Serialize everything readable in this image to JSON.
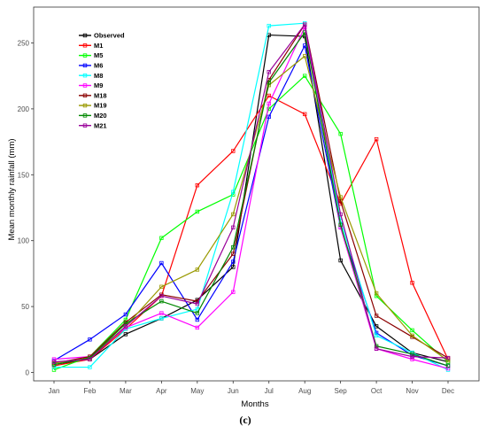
{
  "chart_data": {
    "type": "line",
    "xlabel": "Months",
    "ylabel": "Mean monthly rainfall (mm)",
    "panel_label": "(c)",
    "categories": [
      "Jan",
      "Feb",
      "Mar",
      "Apr",
      "May",
      "Jun",
      "Jul",
      "Aug",
      "Sep",
      "Oct",
      "Nov",
      "Dec"
    ],
    "ylim": [
      -5,
      275
    ],
    "yticks": [
      0,
      50,
      100,
      150,
      200,
      250
    ],
    "grid": false,
    "legend_position": "top-left",
    "series": [
      {
        "name": "Observed",
        "color": "#000000",
        "values": [
          6,
          10,
          29,
          41,
          55,
          80,
          256,
          255,
          85,
          35,
          15,
          8
        ]
      },
      {
        "name": "M1",
        "color": "#ff0000",
        "values": [
          5,
          10,
          33,
          58,
          142,
          168,
          210,
          196,
          128,
          177,
          68,
          10
        ]
      },
      {
        "name": "M5",
        "color": "#00ff00",
        "values": [
          2,
          12,
          40,
          102,
          122,
          135,
          200,
          225,
          181,
          58,
          32,
          8
        ]
      },
      {
        "name": "M6",
        "color": "#0000ff",
        "values": [
          9,
          25,
          44,
          83,
          40,
          84,
          194,
          248,
          110,
          30,
          13,
          5
        ]
      },
      {
        "name": "M8",
        "color": "#00ffff",
        "values": [
          4,
          4,
          33,
          41,
          48,
          137,
          263,
          265,
          115,
          28,
          15,
          2
        ]
      },
      {
        "name": "M9",
        "color": "#ff00ff",
        "values": [
          10,
          12,
          34,
          45,
          34,
          61,
          204,
          262,
          110,
          18,
          10,
          3
        ]
      },
      {
        "name": "M18",
        "color": "#8b0000",
        "values": [
          7,
          12,
          38,
          59,
          54,
          90,
          222,
          264,
          130,
          43,
          27,
          11
        ]
      },
      {
        "name": "M19",
        "color": "#999900",
        "values": [
          7,
          11,
          35,
          65,
          78,
          120,
          218,
          240,
          133,
          60,
          28,
          9
        ]
      },
      {
        "name": "M20",
        "color": "#008800",
        "values": [
          6,
          11,
          37,
          54,
          45,
          95,
          220,
          258,
          112,
          20,
          14,
          5
        ]
      },
      {
        "name": "M21",
        "color": "#990099",
        "values": [
          8,
          10,
          35,
          58,
          52,
          110,
          228,
          264,
          120,
          18,
          12,
          11
        ]
      }
    ]
  }
}
